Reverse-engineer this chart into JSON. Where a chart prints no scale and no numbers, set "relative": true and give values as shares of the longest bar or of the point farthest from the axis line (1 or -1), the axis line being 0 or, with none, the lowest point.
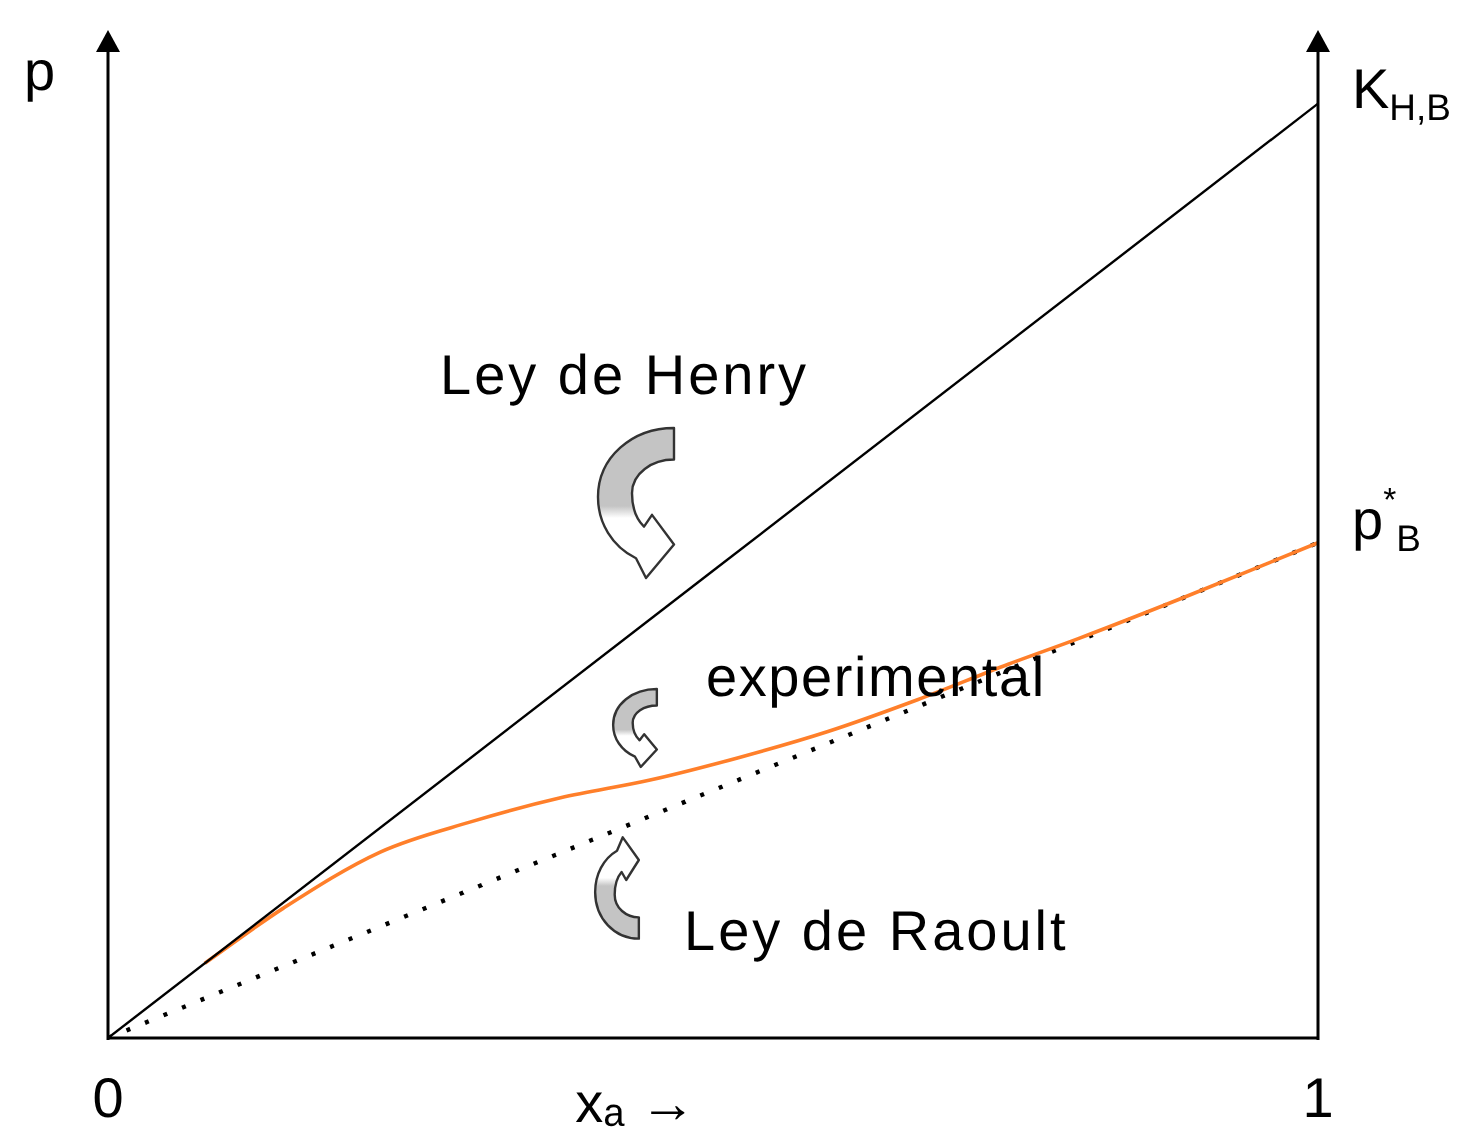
{
  "chart_data": {
    "type": "line",
    "relative": true,
    "xlabel": "xₐ →",
    "ylabel": "p",
    "xlim": [
      0,
      1
    ],
    "xticks": [
      0,
      1
    ],
    "series": [
      {
        "name": "Ley de Henry",
        "color": "#000000",
        "line_style": "solid",
        "x": [
          0,
          1
        ],
        "values": [
          0,
          1
        ]
      },
      {
        "name": "experimental",
        "color": "#ff7f2a",
        "line_style": "solid",
        "x": [
          0.08,
          0.145,
          0.225,
          0.299,
          0.374,
          0.448,
          0.521,
          0.595,
          0.669,
          0.744,
          0.803,
          0.89,
          1
        ],
        "values": [
          0.08,
          0.139,
          0.199,
          0.231,
          0.257,
          0.276,
          0.3,
          0.328,
          0.362,
          0.4,
          0.428,
          0.472,
          0.53
        ]
      },
      {
        "name": "Ley de Raoult",
        "color": "#000000",
        "line_style": "dotted",
        "x": [
          0,
          1
        ],
        "values": [
          0,
          0.53
        ]
      }
    ],
    "annotations": [
      {
        "text": "K$_{H,B}$",
        "x": 1,
        "y": 1
      },
      {
        "text": "p$^{*}$$_{B}$",
        "x": 1,
        "y": 0.53
      }
    ],
    "legend": false,
    "grid": false,
    "marker": "none"
  }
}
